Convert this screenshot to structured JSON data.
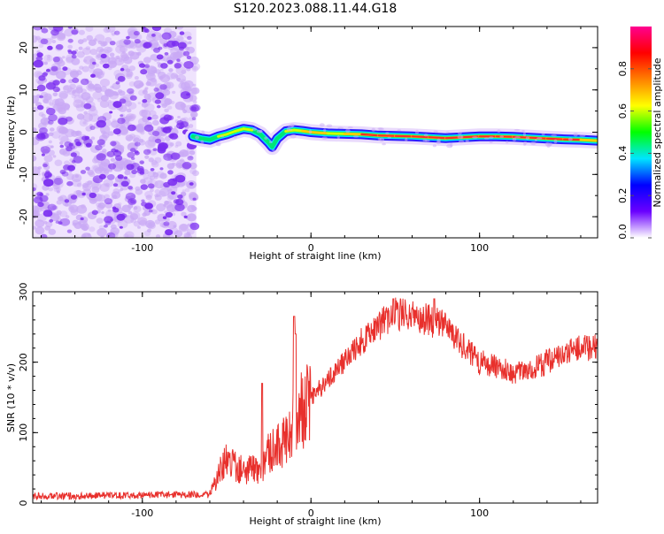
{
  "title": "S120.2023.088.11.44.G18",
  "colors": {
    "spectrogram_background": "#c9a9f5",
    "spectrogram_blobs": "#7a2cf0",
    "snr_line": "#e8302c",
    "ridge_low": "#2a1cff",
    "ridge_mid": "#00e676",
    "ridge_high": "#ff2a2a"
  },
  "chart_data": [
    {
      "type": "heatmap",
      "name": "spectrogram",
      "xlabel": "Height of straight line (km)",
      "ylabel": "Frequency (Hz)",
      "xlim": [
        -165,
        170
      ],
      "ylim": [
        -25,
        25
      ],
      "x_ticks": [
        -100,
        0,
        100
      ],
      "y_ticks": [
        -20,
        -10,
        0,
        10,
        20
      ],
      "colorbar": {
        "label": "Normalized spectral amplitude",
        "range": [
          0,
          1
        ],
        "ticks": [
          "0.0",
          "0.2",
          "0.4",
          "0.6",
          "0.8"
        ],
        "tick_values": [
          0,
          0.2,
          0.4,
          0.6,
          0.8
        ],
        "colormap": [
          "#ffffff",
          "#6a00ff",
          "#0000ff",
          "#00e5ff",
          "#00ff00",
          "#ffff00",
          "#ff8000",
          "#ff0000",
          "#ff0090"
        ]
      },
      "noise_region_x": [
        -165,
        -68
      ],
      "ridge": {
        "x": [
          -70,
          -65,
          -60,
          -55,
          -50,
          -45,
          -40,
          -35,
          -30,
          -25,
          -23,
          -20,
          -15,
          -10,
          -5,
          0,
          10,
          20,
          30,
          40,
          50,
          60,
          70,
          80,
          90,
          100,
          110,
          120,
          130,
          140,
          150,
          160,
          170
        ],
        "y": [
          -1,
          -1.5,
          -1.8,
          -1,
          -0.5,
          0.2,
          0.8,
          0.5,
          -0.5,
          -2.5,
          -3.5,
          -1.5,
          0.2,
          0.5,
          0.3,
          0,
          -0.3,
          -0.4,
          -0.5,
          -0.8,
          -0.9,
          -1,
          -1.2,
          -1.4,
          -1.2,
          -1,
          -1,
          -1.1,
          -1.3,
          -1.5,
          -1.7,
          -1.8,
          -2
        ],
        "amplitude": [
          0.2,
          0.5,
          0.6,
          0.55,
          0.7,
          0.75,
          0.6,
          0.65,
          0.5,
          0.3,
          0.25,
          0.4,
          0.6,
          0.7,
          0.8,
          0.85,
          0.8,
          0.7,
          0.9,
          0.85,
          0.9,
          0.95,
          0.85,
          0.9,
          0.95,
          1,
          1,
          0.95,
          0.9,
          0.85,
          0.9,
          0.85,
          0.8
        ]
      }
    },
    {
      "type": "line",
      "name": "snr",
      "xlabel": "Height of straight line (km)",
      "ylabel": "SNR (10 * v/v)",
      "xlim": [
        -165,
        170
      ],
      "ylim": [
        0,
        300
      ],
      "x_ticks": [
        -100,
        0,
        100
      ],
      "y_ticks": [
        0,
        100,
        200,
        300
      ],
      "envelope": {
        "x": [
          -165,
          -140,
          -120,
          -100,
          -80,
          -60,
          -55,
          -50,
          -45,
          -40,
          -35,
          -30,
          -25,
          -20,
          -15,
          -10,
          -5,
          0,
          10,
          20,
          30,
          40,
          50,
          60,
          70,
          80,
          90,
          100,
          110,
          120,
          130,
          140,
          150,
          160,
          170
        ],
        "y": [
          10,
          10,
          11,
          11,
          12,
          12,
          40,
          60,
          55,
          45,
          50,
          40,
          70,
          80,
          90,
          120,
          130,
          150,
          175,
          200,
          230,
          250,
          270,
          265,
          260,
          250,
          225,
          200,
          195,
          185,
          190,
          200,
          210,
          220,
          220
        ]
      },
      "spikes": [
        {
          "x": -29,
          "y": 170
        },
        {
          "x": -10,
          "y": 265
        },
        {
          "x": -9,
          "y": 240
        },
        {
          "x": 49,
          "y": 290
        },
        {
          "x": 73,
          "y": 290
        }
      ]
    }
  ]
}
